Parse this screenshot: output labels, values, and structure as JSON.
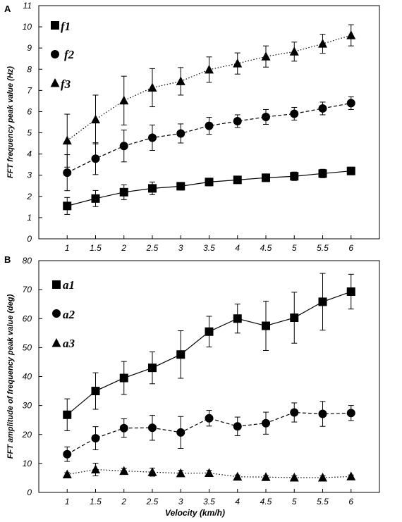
{
  "chart_data": [
    {
      "type": "line",
      "panel": "A",
      "ylabel": "FFT frequency peak value (Hz)",
      "xlabel": "",
      "xlim": [
        0.5,
        6.5
      ],
      "ylim": [
        0,
        11
      ],
      "yticks": [
        0,
        1,
        2,
        3,
        4,
        5,
        6,
        7,
        8,
        9,
        10,
        11
      ],
      "x": [
        1,
        1.5,
        2,
        2.5,
        3,
        3.5,
        4,
        4.5,
        5,
        5.5,
        6
      ],
      "legend_position": "top-left",
      "series": [
        {
          "name": "f1",
          "marker": "square",
          "line": "solid",
          "values": [
            1.55,
            1.9,
            2.2,
            2.38,
            2.48,
            2.68,
            2.78,
            2.88,
            2.95,
            3.08,
            3.2
          ],
          "errors": [
            0.4,
            0.38,
            0.35,
            0.3,
            0.18,
            0.18,
            0.15,
            0.18,
            0.2,
            0.2,
            0.18
          ]
        },
        {
          "name": "f2",
          "marker": "circle",
          "line": "dashed",
          "values": [
            3.12,
            3.78,
            4.38,
            4.77,
            4.97,
            5.33,
            5.55,
            5.75,
            5.9,
            6.15,
            6.4
          ],
          "errors": [
            0.85,
            0.75,
            0.75,
            0.6,
            0.45,
            0.4,
            0.3,
            0.35,
            0.3,
            0.3,
            0.3
          ]
        },
        {
          "name": "f3",
          "marker": "triangle",
          "line": "dotted",
          "values": [
            4.63,
            5.63,
            6.52,
            7.13,
            7.43,
            7.98,
            8.27,
            8.6,
            8.83,
            9.2,
            9.6
          ],
          "errors": [
            1.25,
            1.15,
            1.15,
            0.9,
            0.65,
            0.6,
            0.5,
            0.5,
            0.45,
            0.45,
            0.5
          ]
        }
      ]
    },
    {
      "type": "line",
      "panel": "B",
      "ylabel": "FFT amplitude of frequency peak value (deg)",
      "xlabel": "Velocity (km/h)",
      "xlim": [
        0.5,
        6.5
      ],
      "ylim": [
        0,
        80
      ],
      "yticks": [
        0,
        10,
        20,
        30,
        40,
        50,
        60,
        70,
        80
      ],
      "x": [
        1,
        1.5,
        2,
        2.5,
        3,
        3.5,
        4,
        4.5,
        5,
        5.5,
        6
      ],
      "legend_position": "top-left",
      "series": [
        {
          "name": "a1",
          "marker": "square",
          "line": "solid",
          "values": [
            26.8,
            35,
            39.5,
            43,
            47.6,
            55.5,
            60,
            57.5,
            60.3,
            65.8,
            69.3
          ],
          "errors": [
            5.5,
            6.3,
            5.7,
            5.5,
            8.2,
            5.3,
            5.0,
            8.5,
            8.8,
            9.8,
            6.0
          ]
        },
        {
          "name": "a2",
          "marker": "circle",
          "line": "dashed",
          "values": [
            13.2,
            18.7,
            22.2,
            22.3,
            20.7,
            25.6,
            22.8,
            23.9,
            27.6,
            27.1,
            27.4
          ],
          "errors": [
            2.5,
            4.0,
            3.2,
            4.3,
            5.5,
            2.7,
            3.2,
            3.8,
            3.3,
            4.3,
            2.6
          ]
        },
        {
          "name": "a3",
          "marker": "triangle",
          "line": "dotted",
          "values": [
            6.2,
            7.9,
            7.4,
            7.0,
            6.6,
            6.7,
            5.4,
            5.3,
            5.1,
            5.1,
            5.5
          ],
          "errors": [
            0.6,
            2.2,
            0.9,
            1.4,
            1.0,
            0.9,
            0.6,
            0.5,
            0.6,
            0.6,
            0.5
          ]
        }
      ]
    }
  ]
}
